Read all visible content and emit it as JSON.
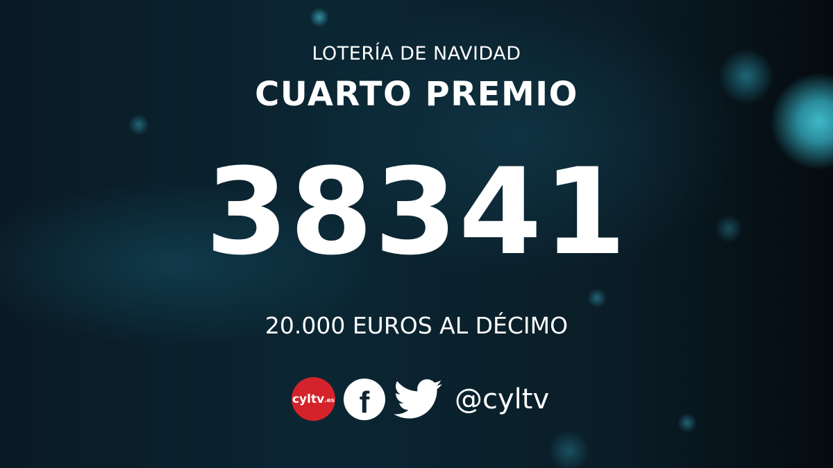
{
  "header": {
    "subtitle": "LOTERÍA DE NAVIDAD",
    "title": "CUARTO PREMIO"
  },
  "main": {
    "number": "38341",
    "prize": "20.000 EUROS AL DÉCIMO"
  },
  "footer": {
    "logo_text": "cyltv",
    "logo_suffix": ".es",
    "icons": [
      "facebook-icon",
      "twitter-icon"
    ],
    "handle": "@cyltv"
  },
  "colors": {
    "logo_red": "#d4232a",
    "accent_teal": "#3fb9c9"
  }
}
